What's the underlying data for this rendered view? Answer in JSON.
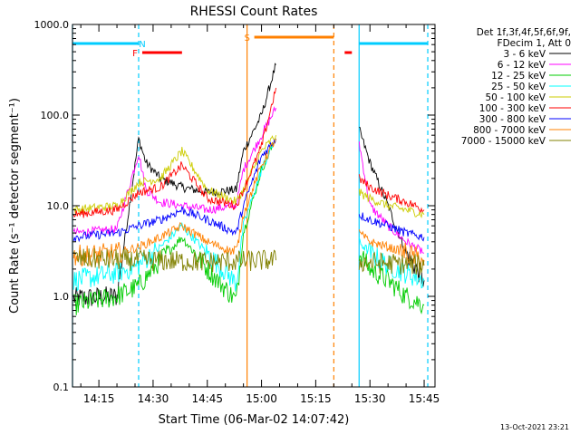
{
  "chart_data": {
    "type": "line",
    "title": "RHESSI Count Rates",
    "xlabel": "Start Time (06-Mar-02 14:07:42)",
    "ylabel": "Count Rate (s⁻¹ detector segment⁻¹)",
    "y_scale": "log",
    "ylim": [
      0.1,
      1000
    ],
    "xlim": [
      "14:07:42",
      "15:48:00"
    ],
    "x_ticks": [
      "14:15",
      "14:30",
      "14:45",
      "15:00",
      "15:15",
      "15:30",
      "15:45"
    ],
    "y_ticks": [
      "0.1",
      "1.0",
      "10.0",
      "100.0",
      "1000.0"
    ],
    "legend_header": [
      "Det 1f,3f,4f,5f,6f,9f,",
      "FDecim 1, Att 0"
    ],
    "legend_position": "outside-right",
    "series": [
      {
        "name": "3 - 6 keV",
        "color": "#000000",
        "points": [
          [
            "14:08",
            0.95
          ],
          [
            "14:20",
            1.0
          ],
          [
            "14:26",
            55
          ],
          [
            "14:28",
            30
          ],
          [
            "14:32",
            20
          ],
          [
            "14:38",
            16
          ],
          [
            "14:45",
            14
          ],
          [
            "14:53",
            15
          ],
          [
            "14:55",
            40
          ],
          [
            "15:00",
            100
          ],
          [
            "15:04",
            360
          ],
          [
            "15:27",
            70
          ],
          [
            "15:30",
            30
          ],
          [
            "15:35",
            10
          ],
          [
            "15:40",
            3
          ],
          [
            "15:45",
            1.5
          ]
        ]
      },
      {
        "name": "6 - 12 keV",
        "color": "#ff00ff",
        "points": [
          [
            "14:08",
            5
          ],
          [
            "14:20",
            5.5
          ],
          [
            "14:26",
            38
          ],
          [
            "14:28",
            15
          ],
          [
            "14:32",
            11
          ],
          [
            "14:38",
            10
          ],
          [
            "14:45",
            9
          ],
          [
            "14:53",
            10
          ],
          [
            "14:55",
            25
          ],
          [
            "15:00",
            60
          ],
          [
            "15:04",
            120
          ],
          [
            "15:27",
            50
          ],
          [
            "15:30",
            10
          ],
          [
            "15:35",
            6
          ],
          [
            "15:40",
            4
          ],
          [
            "15:45",
            3
          ]
        ]
      },
      {
        "name": "12 - 25 keV",
        "color": "#00cc00",
        "points": [
          [
            "14:08",
            0.8
          ],
          [
            "14:20",
            1.0
          ],
          [
            "14:26",
            1.3
          ],
          [
            "14:32",
            2.5
          ],
          [
            "14:38",
            4.5
          ],
          [
            "14:45",
            2.0
          ],
          [
            "14:53",
            0.9
          ],
          [
            "14:55",
            5
          ],
          [
            "15:00",
            25
          ],
          [
            "15:04",
            55
          ],
          [
            "15:27",
            3
          ],
          [
            "15:30",
            2
          ],
          [
            "15:35",
            1.5
          ],
          [
            "15:40",
            1.0
          ],
          [
            "15:45",
            0.8
          ]
        ]
      },
      {
        "name": "25 - 50 keV",
        "color": "#00ffff",
        "points": [
          [
            "14:08",
            1.5
          ],
          [
            "14:20",
            1.8
          ],
          [
            "14:26",
            2.2
          ],
          [
            "14:32",
            3.5
          ],
          [
            "14:38",
            6
          ],
          [
            "14:45",
            3
          ],
          [
            "14:53",
            1.4
          ],
          [
            "14:55",
            6
          ],
          [
            "15:00",
            25
          ],
          [
            "15:04",
            55
          ],
          [
            "15:27",
            4
          ],
          [
            "15:30",
            3
          ],
          [
            "15:35",
            2.2
          ],
          [
            "15:40",
            1.8
          ],
          [
            "15:45",
            1.5
          ]
        ]
      },
      {
        "name": "50 - 100 keV",
        "color": "#cccc00",
        "points": [
          [
            "14:08",
            9
          ],
          [
            "14:20",
            10
          ],
          [
            "14:26",
            18
          ],
          [
            "14:32",
            20
          ],
          [
            "14:38",
            40
          ],
          [
            "14:45",
            15
          ],
          [
            "14:53",
            11
          ],
          [
            "14:55",
            15
          ],
          [
            "15:00",
            40
          ],
          [
            "15:04",
            60
          ],
          [
            "15:27",
            14
          ],
          [
            "15:30",
            12
          ],
          [
            "15:35",
            10
          ],
          [
            "15:40",
            9
          ],
          [
            "15:45",
            8
          ]
        ]
      },
      {
        "name": "100 - 300 keV",
        "color": "#ff0000",
        "points": [
          [
            "14:08",
            8
          ],
          [
            "14:20",
            9
          ],
          [
            "14:26",
            14
          ],
          [
            "14:32",
            16
          ],
          [
            "14:38",
            28
          ],
          [
            "14:45",
            12
          ],
          [
            "14:53",
            10
          ],
          [
            "14:55",
            15
          ],
          [
            "15:00",
            45
          ],
          [
            "15:04",
            200
          ],
          [
            "15:27",
            20
          ],
          [
            "15:30",
            16
          ],
          [
            "15:35",
            13
          ],
          [
            "15:40",
            11
          ],
          [
            "15:45",
            9
          ]
        ]
      },
      {
        "name": "300 - 800 keV",
        "color": "#0000ff",
        "points": [
          [
            "14:08",
            4.5
          ],
          [
            "14:20",
            5
          ],
          [
            "14:26",
            6
          ],
          [
            "14:32",
            7
          ],
          [
            "14:38",
            9
          ],
          [
            "14:45",
            7
          ],
          [
            "14:53",
            5
          ],
          [
            "14:55",
            10
          ],
          [
            "15:00",
            35
          ],
          [
            "15:04",
            55
          ],
          [
            "15:27",
            8
          ],
          [
            "15:30",
            7
          ],
          [
            "15:35",
            6
          ],
          [
            "15:40",
            5
          ],
          [
            "15:45",
            4.5
          ]
        ]
      },
      {
        "name": "800 - 7000 keV",
        "color": "#ff8000",
        "points": [
          [
            "14:08",
            2.8
          ],
          [
            "14:20",
            3
          ],
          [
            "14:26",
            3.5
          ],
          [
            "14:32",
            4.5
          ],
          [
            "14:38",
            6
          ],
          [
            "14:45",
            4
          ],
          [
            "14:53",
            3
          ],
          [
            "14:55",
            8
          ],
          [
            "15:00",
            28
          ],
          [
            "15:04",
            55
          ],
          [
            "15:27",
            5
          ],
          [
            "15:30",
            4
          ],
          [
            "15:35",
            3.5
          ],
          [
            "15:40",
            3
          ],
          [
            "15:45",
            2.5
          ]
        ]
      },
      {
        "name": "7000 - 15000 keV",
        "color": "#808000",
        "points": [
          [
            "14:08",
            2.6
          ],
          [
            "14:45",
            2.4
          ],
          [
            "15:04",
            2.5
          ],
          [
            "15:27",
            2.4
          ],
          [
            "15:45",
            2.2
          ]
        ]
      }
    ],
    "flags": [
      {
        "label": "N",
        "color": "#00ccff",
        "label_time": "14:27",
        "segments": [
          [
            "14:07:42",
            "14:26"
          ],
          [
            "15:27",
            "15:46"
          ]
        ]
      },
      {
        "label": "F",
        "color": "#ff0000",
        "label_time": "14:25",
        "segments": [
          [
            "14:27",
            "14:38"
          ],
          [
            "15:23",
            "15:25"
          ]
        ]
      },
      {
        "label": "S",
        "color": "#ff8000",
        "label_time": "14:56",
        "segments": [
          [
            "14:58",
            "15:20"
          ]
        ]
      }
    ],
    "markers": [
      {
        "time": "14:07:42",
        "color": "#00ccff",
        "style": "solid"
      },
      {
        "time": "14:26",
        "color": "#00ccff",
        "style": "dashed"
      },
      {
        "time": "14:56",
        "color": "#ff8000",
        "style": "solid"
      },
      {
        "time": "15:20",
        "color": "#ff8000",
        "style": "dashed"
      },
      {
        "time": "15:27",
        "color": "#00ccff",
        "style": "solid"
      },
      {
        "time": "15:46",
        "color": "#00ccff",
        "style": "dashed"
      }
    ],
    "grid": false
  },
  "footer": {
    "timestamp": "13-Oct-2021 23:21"
  }
}
